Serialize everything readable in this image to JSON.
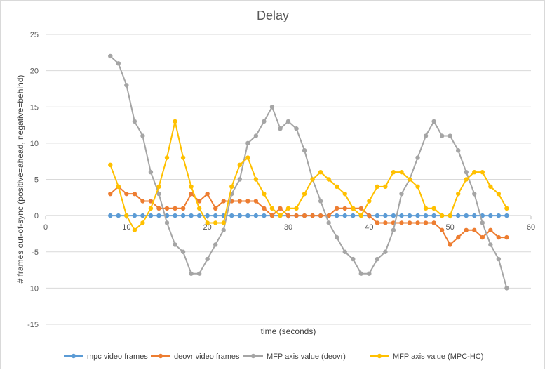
{
  "chart_data": {
    "type": "line",
    "title": "Delay",
    "xlabel": "time (seconds)",
    "ylabel": "# frames out-of-sync (positive=ahead, negative=behind)",
    "xlim": [
      0,
      60
    ],
    "ylim": [
      -15,
      25
    ],
    "xticks": [
      "0",
      "10",
      "20",
      "30",
      "40",
      "50",
      "60"
    ],
    "yticks": [
      "-15",
      "-10",
      "-5",
      "0",
      "5",
      "10",
      "15",
      "20",
      "25"
    ],
    "grid": "horizontal",
    "legend": "bottom",
    "x": [
      8,
      9,
      10,
      11,
      12,
      13,
      14,
      15,
      16,
      17,
      18,
      19,
      20,
      21,
      22,
      23,
      24,
      25,
      26,
      27,
      28,
      29,
      30,
      31,
      32,
      33,
      34,
      35,
      36,
      37,
      38,
      39,
      40,
      41,
      42,
      43,
      44,
      45,
      46,
      47,
      48,
      49,
      50,
      51,
      52,
      53,
      54,
      55,
      56,
      57
    ],
    "series": [
      {
        "name": "mpc video frames",
        "color": "#5b9bd5",
        "values": [
          0,
          0,
          0,
          0,
          0,
          0,
          0,
          0,
          0,
          0,
          0,
          0,
          0,
          0,
          0,
          0,
          0,
          0,
          0,
          0,
          0,
          0,
          0,
          0,
          0,
          0,
          0,
          0,
          0,
          0,
          0,
          0,
          0,
          0,
          0,
          0,
          0,
          0,
          0,
          0,
          0,
          0,
          0,
          0,
          0,
          0,
          0,
          0,
          0,
          0
        ]
      },
      {
        "name": "deovr video frames",
        "color": "#ed7d31",
        "values": [
          3,
          4,
          3,
          3,
          2,
          2,
          1,
          1,
          1,
          1,
          3,
          2,
          3,
          1,
          2,
          2,
          2,
          2,
          2,
          1,
          0,
          1,
          0,
          0,
          0,
          0,
          0,
          0,
          1,
          1,
          1,
          1,
          0,
          -1,
          -1,
          -1,
          -1,
          -1,
          -1,
          -1,
          -1,
          -2,
          -4,
          -3,
          -2,
          -2,
          -3,
          -2,
          -3,
          -3
        ]
      },
      {
        "name": "MFP axis value (deovr)",
        "color": "#a5a5a5",
        "values": [
          22,
          21,
          18,
          13,
          11,
          6,
          3,
          -1,
          -4,
          -5,
          -8,
          -8,
          -6,
          -4,
          -2,
          3,
          5,
          10,
          11,
          13,
          15,
          12,
          13,
          12,
          9,
          5,
          2,
          -1,
          -3,
          -5,
          -6,
          -8,
          -8,
          -6,
          -5,
          -2,
          3,
          5,
          8,
          11,
          13,
          11,
          11,
          9,
          6,
          3,
          -1,
          -4,
          -6,
          -10
        ]
      },
      {
        "name": "MFP axis value (MPC-HC)",
        "color": "#ffc000",
        "values": [
          7,
          4,
          0,
          -2,
          -1,
          1,
          4,
          8,
          13,
          8,
          4,
          1,
          -1,
          -1,
          -1,
          4,
          7,
          8,
          5,
          3,
          1,
          0,
          1,
          1,
          3,
          5,
          6,
          5,
          4,
          3,
          1,
          0,
          2,
          4,
          4,
          6,
          6,
          5,
          4,
          1,
          1,
          0,
          0,
          3,
          5,
          6,
          6,
          4,
          3,
          1
        ]
      }
    ]
  }
}
